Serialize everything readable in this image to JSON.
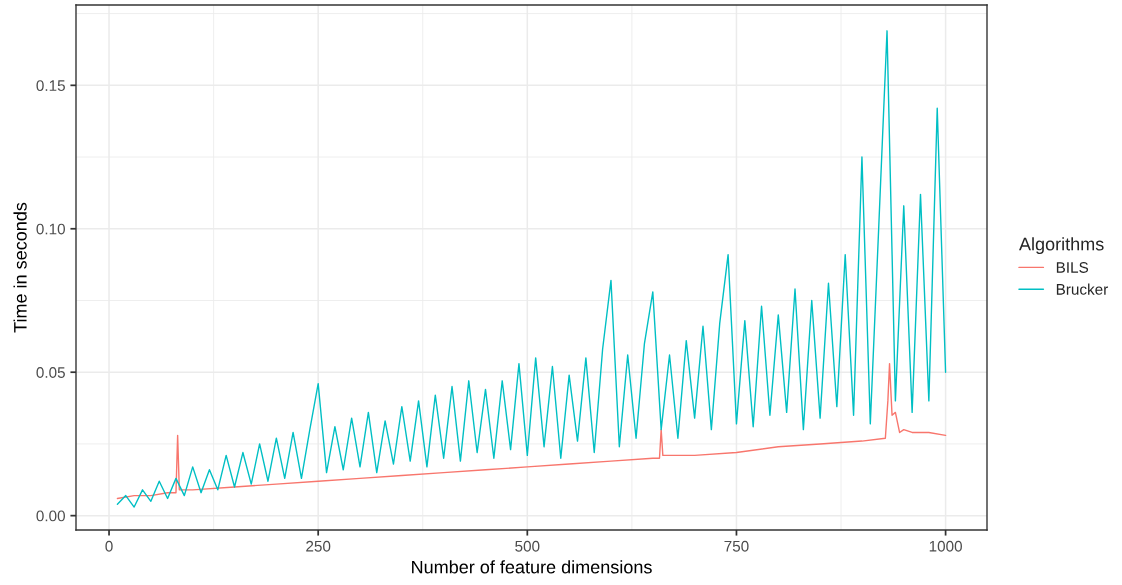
{
  "chart_data": {
    "type": "line",
    "xlabel": "Number of feature dimensions",
    "ylabel": "Time in seconds",
    "legend_title": "Algorithms",
    "xlim": [
      -39.5,
      1049.5
    ],
    "ylim": [
      -0.005,
      0.178
    ],
    "xticks": [
      0,
      250,
      500,
      750,
      1000
    ],
    "yticks": [
      {
        "value": 0,
        "label": "0.00"
      },
      {
        "value": 0.05,
        "label": "0.05"
      },
      {
        "value": 0.1,
        "label": "0.10"
      },
      {
        "value": 0.15,
        "label": "0.15"
      }
    ],
    "grid": true,
    "legend": "right",
    "marker": "none",
    "line_style": "solid",
    "series": [
      {
        "name": "BILS",
        "color": "#f8766d",
        "x": [
          10,
          30,
          50,
          70,
          80,
          82,
          84,
          100,
          150,
          200,
          250,
          300,
          350,
          400,
          450,
          500,
          550,
          600,
          650,
          658,
          660,
          662,
          700,
          750,
          800,
          850,
          900,
          928,
          931,
          933,
          936,
          940,
          945,
          950,
          960,
          980,
          1000
        ],
        "values": [
          0.006,
          0.007,
          0.007,
          0.008,
          0.008,
          0.028,
          0.009,
          0.009,
          0.01,
          0.011,
          0.012,
          0.013,
          0.014,
          0.015,
          0.016,
          0.017,
          0.018,
          0.019,
          0.02,
          0.02,
          0.03,
          0.021,
          0.021,
          0.022,
          0.024,
          0.025,
          0.026,
          0.027,
          0.04,
          0.053,
          0.035,
          0.036,
          0.029,
          0.03,
          0.029,
          0.029,
          0.028
        ]
      },
      {
        "name": "Brucker",
        "color": "#00bfc4",
        "x": [
          10,
          20,
          30,
          40,
          50,
          60,
          70,
          80,
          90,
          100,
          110,
          120,
          130,
          140,
          150,
          160,
          170,
          180,
          190,
          200,
          210,
          220,
          230,
          240,
          250,
          260,
          270,
          280,
          290,
          300,
          310,
          320,
          330,
          340,
          350,
          360,
          370,
          380,
          390,
          400,
          410,
          420,
          430,
          440,
          450,
          460,
          470,
          480,
          490,
          500,
          510,
          520,
          530,
          540,
          550,
          560,
          570,
          580,
          590,
          600,
          610,
          620,
          630,
          640,
          650,
          660,
          670,
          680,
          690,
          700,
          710,
          720,
          730,
          740,
          750,
          760,
          770,
          780,
          790,
          800,
          810,
          820,
          830,
          840,
          850,
          860,
          870,
          880,
          890,
          900,
          910,
          920,
          930,
          940,
          950,
          960,
          970,
          980,
          990,
          1000
        ],
        "values": [
          0.004,
          0.007,
          0.003,
          0.009,
          0.005,
          0.012,
          0.006,
          0.013,
          0.007,
          0.017,
          0.008,
          0.016,
          0.009,
          0.021,
          0.01,
          0.022,
          0.011,
          0.025,
          0.012,
          0.027,
          0.013,
          0.029,
          0.013,
          0.03,
          0.046,
          0.015,
          0.031,
          0.016,
          0.034,
          0.017,
          0.036,
          0.015,
          0.033,
          0.018,
          0.038,
          0.019,
          0.04,
          0.017,
          0.042,
          0.02,
          0.045,
          0.019,
          0.047,
          0.022,
          0.044,
          0.02,
          0.047,
          0.023,
          0.053,
          0.021,
          0.055,
          0.024,
          0.052,
          0.02,
          0.049,
          0.026,
          0.055,
          0.022,
          0.058,
          0.082,
          0.024,
          0.056,
          0.027,
          0.06,
          0.078,
          0.03,
          0.056,
          0.027,
          0.061,
          0.034,
          0.066,
          0.03,
          0.067,
          0.091,
          0.032,
          0.068,
          0.031,
          0.073,
          0.035,
          0.07,
          0.036,
          0.079,
          0.03,
          0.075,
          0.034,
          0.081,
          0.038,
          0.091,
          0.035,
          0.125,
          0.032,
          0.1,
          0.169,
          0.04,
          0.108,
          0.036,
          0.112,
          0.04,
          0.142,
          0.05
        ]
      }
    ]
  }
}
